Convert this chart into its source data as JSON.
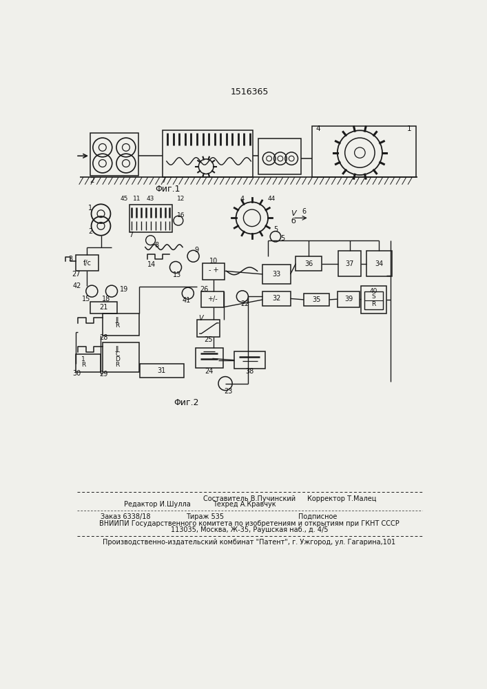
{
  "patent_number": "1516365",
  "fig1_label": "Φиг.1",
  "fig2_label": "Φиг.2",
  "footer_composer": "Составитель В.Пучинский",
  "footer_editor": "Редактор И.Шулла",
  "footer_techred": "Техред А.Кравчук",
  "footer_corrector": "Корректор Т.Малец",
  "footer_order": "Заказ 6338/18",
  "footer_tirazh": "Тираж 535",
  "footer_podpisnoe": "Подписное",
  "footer_vniippi": "ВНИИПИ Государственного комитета по изобретениям и открытиям при ГКНТ СССР",
  "footer_address": "113035, Москва, Ж-35, Раушская наб., д. 4/5",
  "footer_patent": "Производственно-издательский комбинат \"Патент\", г. Ужгород, ул. Гагарина,101",
  "bg_color": "#f0f0eb",
  "line_color": "#1a1a1a",
  "text_color": "#111111"
}
